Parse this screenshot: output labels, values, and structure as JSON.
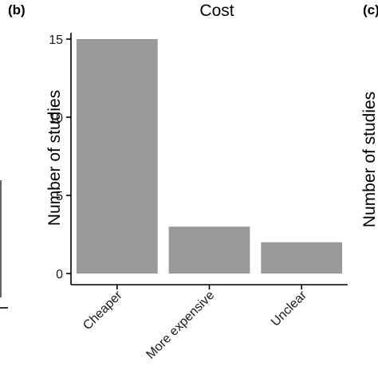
{
  "panels": {
    "current": "(b)",
    "next": "(c)",
    "next_ylabel": "Number of studies"
  },
  "chart_data": {
    "type": "bar",
    "title": "Cost",
    "xlabel": "",
    "ylabel": "Number of studies",
    "categories": [
      "Cheaper",
      "More expensive",
      "Unclear"
    ],
    "values": [
      15,
      3,
      2
    ],
    "ylim": [
      0,
      15.4
    ],
    "yticks": [
      0,
      5,
      10,
      15
    ],
    "bar_color": "#999999",
    "axis_color": "#000000",
    "grid": false,
    "legend": "none"
  }
}
